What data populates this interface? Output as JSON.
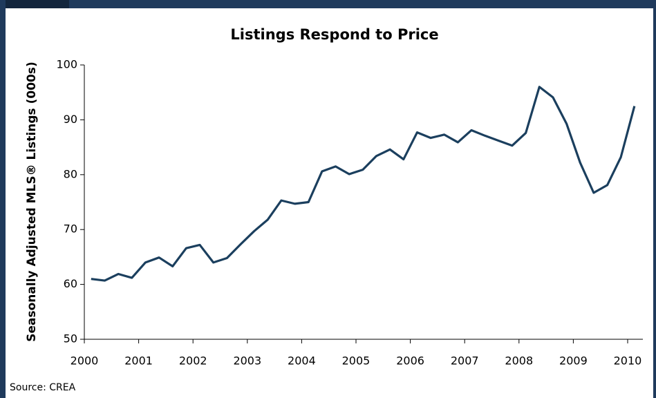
{
  "chart_data": {
    "type": "line",
    "title": "Listings Respond to Price",
    "y_label": "Seasonally Adjusted MLS® Listings (000s)",
    "source": "Source: CREA",
    "x": [
      2000.125,
      2000.375,
      2000.625,
      2000.875,
      2001.125,
      2001.375,
      2001.625,
      2001.875,
      2002.125,
      2002.375,
      2002.625,
      2002.875,
      2003.125,
      2003.375,
      2003.625,
      2003.875,
      2004.125,
      2004.375,
      2004.625,
      2004.875,
      2005.125,
      2005.375,
      2005.625,
      2005.875,
      2006.125,
      2006.375,
      2006.625,
      2006.875,
      2007.125,
      2007.375,
      2007.625,
      2007.875,
      2008.125,
      2008.375,
      2008.625,
      2008.875,
      2009.125,
      2009.375,
      2009.625,
      2009.875,
      2010.125
    ],
    "series": [
      {
        "name": "Listings",
        "color": "#1b3f5e",
        "values": [
          61,
          60.7,
          61.9,
          61.2,
          64,
          64.9,
          63.3,
          66.6,
          67.2,
          64,
          64.8,
          67.3,
          69.7,
          71.8,
          75.3,
          74.7,
          75,
          80.6,
          81.5,
          80.1,
          80.9,
          83.4,
          84.6,
          82.8,
          87.7,
          86.7,
          87.3,
          85.9,
          88.1,
          87.1,
          86.2,
          85.3,
          87.6,
          96,
          94.1,
          89.3,
          82.2,
          76.7,
          78.1,
          83.2,
          92.5
        ]
      }
    ],
    "xlim": [
      2000,
      2010.28
    ],
    "xticks": [
      2000,
      2001,
      2002,
      2003,
      2004,
      2005,
      2006,
      2007,
      2008,
      2009,
      2010
    ],
    "ylim": [
      50,
      100
    ],
    "yticks": [
      50,
      60,
      70,
      80,
      90,
      100
    ],
    "grid": false
  }
}
